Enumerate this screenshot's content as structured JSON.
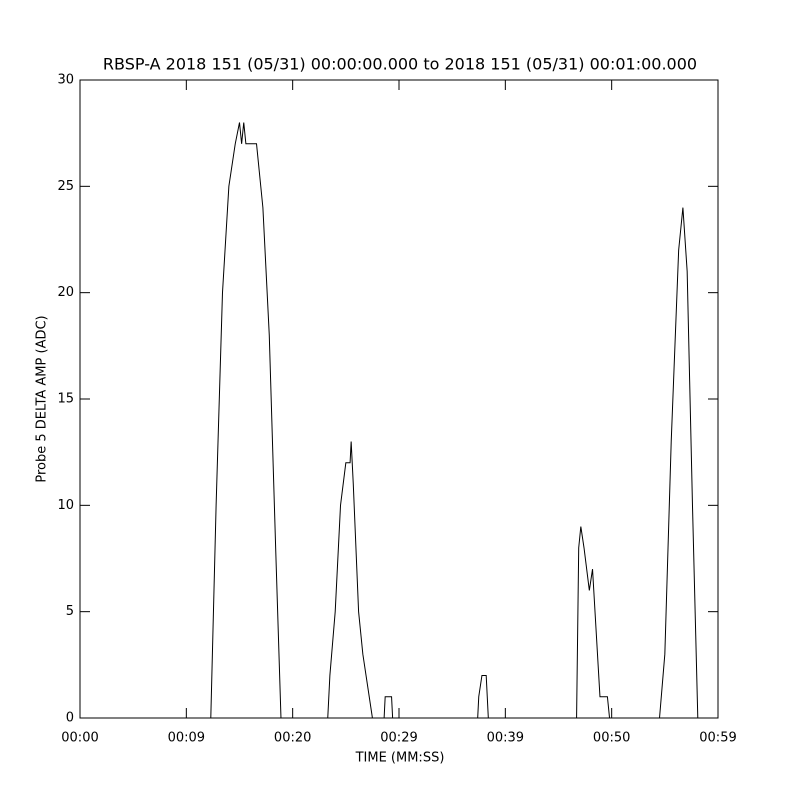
{
  "chart_data": {
    "type": "line",
    "title": "RBSP-A 2018 151 (05/31) 00:00:00.000 to 2018 151 (05/31) 00:01:00.000",
    "x_label": "TIME (MM:SS)",
    "y_label": "Probe 5 DELTA AMP (ADC)",
    "xlim": [
      0,
      60
    ],
    "ylim": [
      0,
      30
    ],
    "xticks": [
      {
        "value": 0,
        "label": "00:00"
      },
      {
        "value": 10,
        "label": "00:09"
      },
      {
        "value": 20,
        "label": "00:20"
      },
      {
        "value": 30,
        "label": "00:29"
      },
      {
        "value": 40,
        "label": "00:39"
      },
      {
        "value": 50,
        "label": "00:50"
      },
      {
        "value": 60,
        "label": "00:59"
      }
    ],
    "yticks": [
      0,
      5,
      10,
      15,
      20,
      25,
      30
    ],
    "color": "#000000",
    "x": [
      0,
      12.3,
      12.8,
      13.4,
      14.0,
      14.6,
      15.0,
      15.2,
      15.4,
      15.6,
      16.6,
      17.2,
      17.8,
      18.4,
      18.9,
      23.3,
      23.5,
      24.0,
      24.5,
      25.0,
      25.4,
      25.5,
      25.7,
      26.2,
      26.6,
      27.5,
      28.6,
      28.7,
      29.3,
      29.4,
      37.4,
      37.5,
      37.8,
      38.2,
      38.4,
      46.7,
      46.9,
      47.1,
      47.4,
      47.9,
      48.2,
      48.9,
      49.6,
      49.8,
      54.5,
      55.0,
      55.6,
      56.3,
      56.7,
      57.1,
      57.6,
      58.1
    ],
    "values": [
      0,
      0,
      10,
      20,
      25,
      27,
      28,
      27,
      28,
      27,
      27,
      24,
      18,
      8,
      0,
      0,
      2,
      5,
      10,
      12,
      12,
      13,
      11,
      5,
      3,
      0,
      0,
      1,
      1,
      0,
      0,
      1,
      2,
      2,
      0,
      0,
      8,
      9,
      8,
      6,
      7,
      1,
      1,
      0,
      0,
      3,
      13,
      22,
      24,
      21,
      10,
      0
    ]
  }
}
